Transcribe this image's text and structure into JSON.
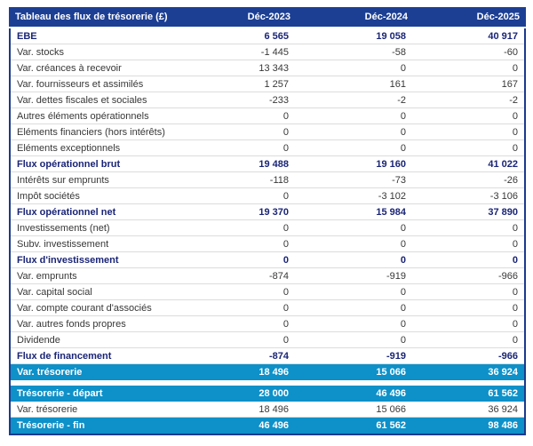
{
  "header": {
    "title": "Tableau des flux de trésorerie (£)",
    "columns": [
      "Déc-2023",
      "Déc-2024",
      "Déc-2025"
    ]
  },
  "colors": {
    "header_bg": "#1c3f94",
    "accent_navy": "#1a2577",
    "highlight_blue": "#0e90c8",
    "row_divider": "#dcdcdc",
    "body_text": "#373737",
    "border_navy": "#1b3a8c"
  },
  "rows": [
    {
      "label": "EBE",
      "values": [
        "6 565",
        "19 058",
        "40 917"
      ],
      "style": "bold"
    },
    {
      "label": "Var. stocks",
      "values": [
        "-1 445",
        "-58",
        "-60"
      ],
      "style": "normal"
    },
    {
      "label": "Var. créances à recevoir",
      "values": [
        "13 343",
        "0",
        "0"
      ],
      "style": "normal"
    },
    {
      "label": "Var. fournisseurs et assimilés",
      "values": [
        "1 257",
        "161",
        "167"
      ],
      "style": "normal"
    },
    {
      "label": "Var. dettes fiscales et sociales",
      "values": [
        "-233",
        "-2",
        "-2"
      ],
      "style": "normal"
    },
    {
      "label": "Autres éléments opérationnels",
      "values": [
        "0",
        "0",
        "0"
      ],
      "style": "normal"
    },
    {
      "label": "Eléments financiers (hors intérêts)",
      "values": [
        "0",
        "0",
        "0"
      ],
      "style": "normal"
    },
    {
      "label": "Eléments exceptionnels",
      "values": [
        "0",
        "0",
        "0"
      ],
      "style": "normal"
    },
    {
      "label": "Flux opérationnel brut",
      "values": [
        "19 488",
        "19 160",
        "41 022"
      ],
      "style": "bold"
    },
    {
      "label": "Intérêts sur emprunts",
      "values": [
        "-118",
        "-73",
        "-26"
      ],
      "style": "normal"
    },
    {
      "label": "Impôt sociétés",
      "values": [
        "0",
        "-3 102",
        "-3 106"
      ],
      "style": "normal"
    },
    {
      "label": "Flux opérationnel net",
      "values": [
        "19 370",
        "15 984",
        "37 890"
      ],
      "style": "bold"
    },
    {
      "label": "Investissements (net)",
      "values": [
        "0",
        "0",
        "0"
      ],
      "style": "normal"
    },
    {
      "label": "Subv. investissement",
      "values": [
        "0",
        "0",
        "0"
      ],
      "style": "normal"
    },
    {
      "label": "Flux d'investissement",
      "values": [
        "0",
        "0",
        "0"
      ],
      "style": "bold"
    },
    {
      "label": "Var. emprunts",
      "values": [
        "-874",
        "-919",
        "-966"
      ],
      "style": "normal"
    },
    {
      "label": "Var. capital social",
      "values": [
        "0",
        "0",
        "0"
      ],
      "style": "normal"
    },
    {
      "label": "Var. compte courant d'associés",
      "values": [
        "0",
        "0",
        "0"
      ],
      "style": "normal"
    },
    {
      "label": "Var. autres fonds propres",
      "values": [
        "0",
        "0",
        "0"
      ],
      "style": "normal"
    },
    {
      "label": "Dividende",
      "values": [
        "0",
        "0",
        "0"
      ],
      "style": "normal"
    },
    {
      "label": "Flux de financement",
      "values": [
        "-874",
        "-919",
        "-966"
      ],
      "style": "bold"
    },
    {
      "label": "Var. trésorerie",
      "values": [
        "18 496",
        "15 066",
        "36 924"
      ],
      "style": "highlight"
    },
    {
      "style": "spacer"
    },
    {
      "label": "Trésorerie - départ",
      "values": [
        "28 000",
        "46 496",
        "61 562"
      ],
      "style": "highlight"
    },
    {
      "label": "Var. trésorerie",
      "values": [
        "18 496",
        "15 066",
        "36 924"
      ],
      "style": "normal"
    },
    {
      "label": "Trésorerie - fin",
      "values": [
        "46 496",
        "61 562",
        "98 486"
      ],
      "style": "highlight"
    }
  ]
}
